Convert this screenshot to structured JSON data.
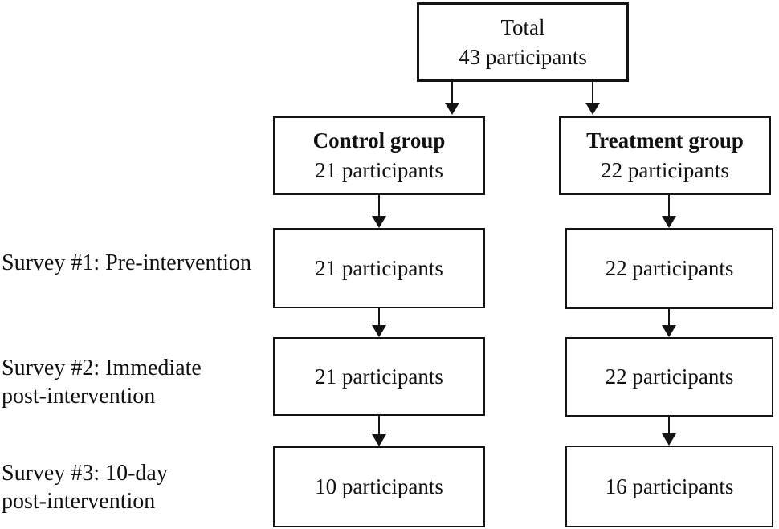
{
  "flow": {
    "title_hint": "Participant flow diagram",
    "total": {
      "line1": "Total",
      "line2": "43 participants"
    },
    "columns": [
      {
        "title": "Control group",
        "count": "21 participants",
        "surveys": [
          "21 participants",
          "21 participants",
          "10 participants"
        ]
      },
      {
        "title": "Treatment group",
        "count": "22 participants",
        "surveys": [
          "22 participants",
          "22 participants",
          "16 participants"
        ]
      }
    ],
    "row_labels": [
      {
        "line1": "Survey #1: Pre-intervention",
        "line2": ""
      },
      {
        "line1": "Survey #2: Immediate",
        "line2": "post-intervention"
      },
      {
        "line1": "Survey #3: 10-day",
        "line2": "post-intervention"
      }
    ],
    "colors": {
      "border": "#141414",
      "text": "#111111",
      "background": "#ffffff"
    }
  }
}
